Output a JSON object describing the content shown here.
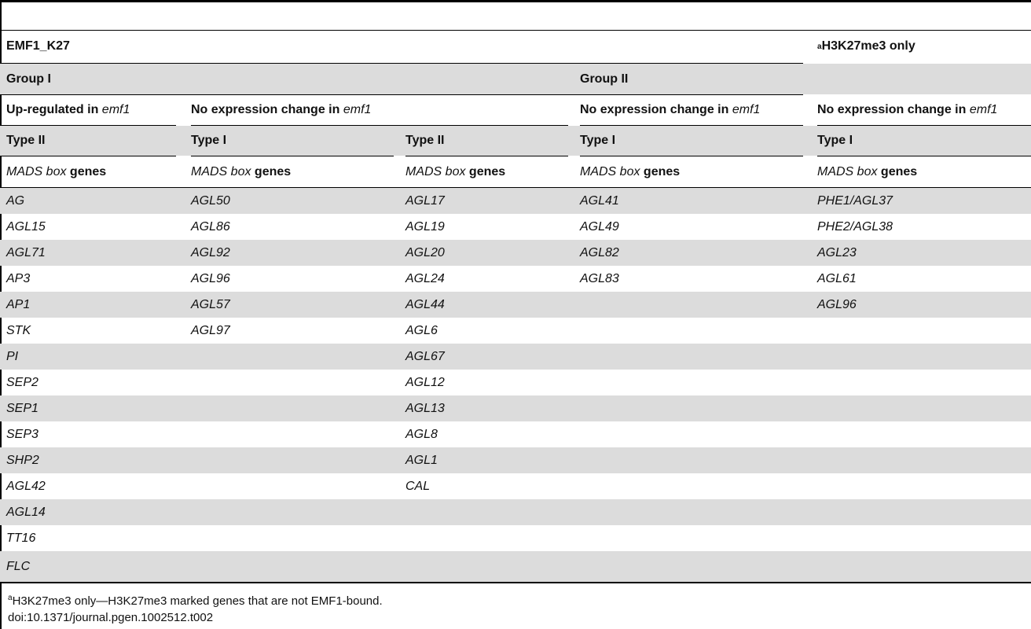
{
  "header": {
    "emf1_k27": "EMF1_K27",
    "h3k27_sup": "a",
    "h3k27_label": "H3K27me3 only",
    "group1": "Group I",
    "group2": "Group II",
    "up_regulated": "Up-regulated in ",
    "no_change": "No expression change in ",
    "emf1": "emf1",
    "type1": "Type I",
    "type2": "Type II",
    "mads_it": "MADS box",
    "mads_rest": " genes"
  },
  "columns": {
    "col1": [
      "AG",
      "AGL15",
      "AGL71",
      "AP3",
      "AP1",
      "STK",
      "PI",
      "SEP2",
      "SEP1",
      "SEP3",
      "SHP2",
      "AGL42",
      "AGL14",
      "TT16",
      "FLC"
    ],
    "col2": [
      "AGL50",
      "AGL86",
      "AGL92",
      "AGL96",
      "AGL57",
      "AGL97",
      "",
      "",
      "",
      "",
      "",
      "",
      "",
      "",
      ""
    ],
    "col3": [
      "AGL17",
      "AGL19",
      "AGL20",
      "AGL24",
      "AGL44",
      "AGL6",
      "AGL67",
      "AGL12",
      "AGL13",
      "AGL8",
      "AGL1",
      "CAL",
      "",
      "",
      ""
    ],
    "col4": [
      "AGL41",
      "AGL49",
      "AGL82",
      "AGL83",
      "",
      "",
      "",
      "",
      "",
      "",
      "",
      "",
      "",
      "",
      ""
    ],
    "col5": [
      "PHE1/AGL37",
      "PHE2/AGL38",
      "AGL23",
      "AGL61",
      "AGL96",
      "",
      "",
      "",
      "",
      "",
      "",
      "",
      "",
      "",
      ""
    ]
  },
  "footnote": {
    "sup": "a",
    "text": "H3K27me3 only—H3K27me3 marked genes that are not EMF1-bound.",
    "doi": "doi:10.1371/journal.pgen.1002512.t002"
  }
}
